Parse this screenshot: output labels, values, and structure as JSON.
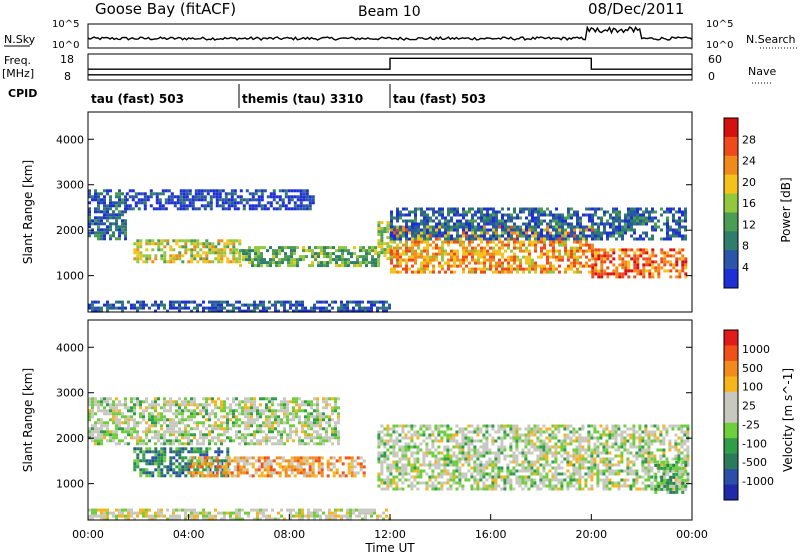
{
  "header": {
    "station": "Goose Bay (fitACF)",
    "beam": "Beam 10",
    "date": "08/Dec/2011"
  },
  "noise_panel": {
    "left_label": "N.Sky",
    "right_label": "N.Search",
    "left_ticks": [
      "10^5",
      "10^0"
    ],
    "right_ticks": [
      "10^5",
      "10^0"
    ]
  },
  "freq_panel": {
    "left_label_1": "Freq.",
    "left_label_2": "[MHz]",
    "right_label": "Nave",
    "left_ticks": [
      "18",
      "8"
    ],
    "right_ticks": [
      "60",
      "0"
    ],
    "freq_value_mhz": 10,
    "nave_low": 25,
    "nave_high": 50,
    "nave_high_start_hour": 12,
    "nave_high_end_hour": 20
  },
  "cpid": {
    "label": "CPID",
    "segments": [
      {
        "label": "tau (fast) 503",
        "start_hour": 0
      },
      {
        "label": "themis (tau) 3310",
        "start_hour": 6
      },
      {
        "label": "tau (fast) 503",
        "start_hour": 12
      }
    ]
  },
  "colors": {
    "power_scale": [
      "#1f2fd6",
      "#2a55a8",
      "#2f7d6a",
      "#4b9d54",
      "#92c83e",
      "#f4c21a",
      "#f08a1a",
      "#ee4a1c",
      "#d61010"
    ],
    "velocity_scale": [
      "#e31a1c",
      "#f0501a",
      "#f28a1c",
      "#f6b41d",
      "#c8c8c0",
      "#c8c8c0",
      "#6fce3c",
      "#2f9d4a",
      "#2b7a5a",
      "#2b4fa8",
      "#1f2aa8"
    ]
  },
  "chart_data": [
    {
      "type": "heatmap",
      "title": "Power",
      "xlabel": "",
      "ylabel": "Slant Range [km]",
      "xlim": [
        0,
        24
      ],
      "ylim": [
        200,
        4600
      ],
      "y_ticks": [
        "1000",
        "2000",
        "3000",
        "4000"
      ],
      "colorbar": {
        "label": "Power [dB]",
        "range": [
          0,
          32
        ],
        "ticks": [
          "4",
          "8",
          "12",
          "16",
          "20",
          "24",
          "28"
        ]
      },
      "regions": [
        {
          "x0": 0.0,
          "x1": 1.5,
          "y0": 1800,
          "y1": 2900,
          "level": 0.2
        },
        {
          "x0": 1.5,
          "x1": 9.0,
          "y0": 2500,
          "y1": 2900,
          "level": 0.1
        },
        {
          "x0": 1.8,
          "x1": 6.0,
          "y0": 1300,
          "y1": 1800,
          "level": 0.55
        },
        {
          "x0": 6.0,
          "x1": 11.5,
          "y0": 1200,
          "y1": 1650,
          "level": 0.4
        },
        {
          "x0": 11.5,
          "x1": 12.0,
          "y0": 1400,
          "y1": 2200,
          "level": 0.5
        },
        {
          "x0": 12.0,
          "x1": 20.0,
          "y0": 1100,
          "y1": 2100,
          "level": 0.7
        },
        {
          "x0": 12.0,
          "x1": 23.8,
          "y0": 1800,
          "y1": 2500,
          "level": 0.2
        },
        {
          "x0": 20.0,
          "x1": 23.8,
          "y0": 1000,
          "y1": 1600,
          "level": 0.8
        },
        {
          "x0": 0.0,
          "x1": 12.0,
          "y0": 250,
          "y1": 450,
          "level": 0.15
        }
      ]
    },
    {
      "type": "heatmap",
      "title": "Velocity",
      "xlabel": "Time UT",
      "ylabel": "Slant Range [km]",
      "xlim": [
        0,
        24
      ],
      "ylim": [
        200,
        4600
      ],
      "x_ticks": [
        "00:00",
        "04:00",
        "08:00",
        "12:00",
        "16:00",
        "20:00",
        "00:00"
      ],
      "y_ticks": [
        "1000",
        "2000",
        "3000",
        "4000"
      ],
      "colorbar": {
        "label": "Velocity [m s^-1]",
        "ticks": [
          "1000",
          "500",
          "100",
          "25",
          "-25",
          "-100",
          "-500",
          "-1000"
        ]
      },
      "regions": [
        {
          "x0": 0.0,
          "x1": 10.0,
          "y0": 1900,
          "y1": 2900,
          "level": 0.5
        },
        {
          "x0": 1.8,
          "x1": 5.5,
          "y0": 1200,
          "y1": 1800,
          "level": 0.75
        },
        {
          "x0": 4.0,
          "x1": 11.0,
          "y0": 1200,
          "y1": 1600,
          "level": 0.3
        },
        {
          "x0": 11.5,
          "x1": 23.8,
          "y0": 900,
          "y1": 2300,
          "level": 0.5
        },
        {
          "x0": 22.5,
          "x1": 23.8,
          "y0": 800,
          "y1": 1500,
          "level": 0.65
        },
        {
          "x0": 0.0,
          "x1": 12.0,
          "y0": 250,
          "y1": 450,
          "level": 0.45
        }
      ]
    }
  ]
}
